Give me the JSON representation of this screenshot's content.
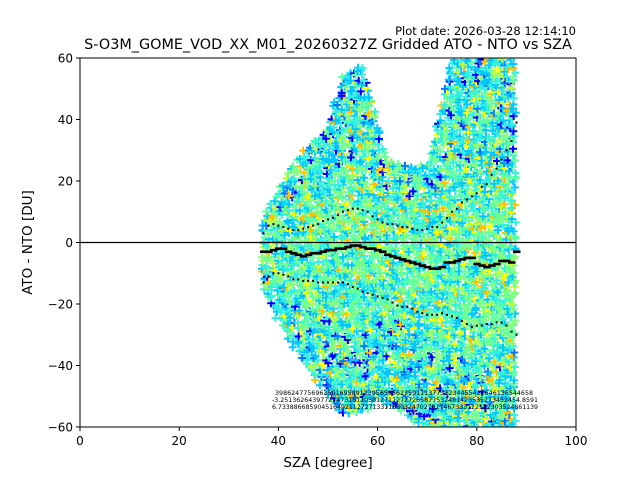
{
  "chart_data": {
    "type": "scatter",
    "title": "S-O3M_GOME_VOD_XX_M01_20260327Z Gridded ATO - NTO vs SZA",
    "plot_date": "Plot date: 2026-03-28 12:14:10",
    "xlabel": "SZA [degree]",
    "ylabel": "ATO - NTO [DU]",
    "xlim": [
      0,
      100
    ],
    "ylim": [
      -60,
      60
    ],
    "xticks": [
      "0",
      "20",
      "40",
      "60",
      "80",
      "100"
    ],
    "yticks": [
      "−60",
      "−40",
      "−20",
      "0",
      "20",
      "40",
      "60"
    ],
    "xtick_values": [
      0,
      20,
      40,
      60,
      80,
      100
    ],
    "ytick_values": [
      -60,
      -40,
      -20,
      0,
      20,
      40,
      60
    ],
    "reference_line_y": 0,
    "colormap": [
      "#0000ff",
      "#0078ff",
      "#00c8ff",
      "#30f0e0",
      "#60ffa0",
      "#80ff80",
      "#c0ff40",
      "#ffff00",
      "#ffc000"
    ],
    "scatter_envelope": {
      "x": [
        37,
        40,
        45,
        50,
        53,
        57,
        60,
        62,
        65,
        70,
        73,
        75,
        80,
        85,
        88
      ],
      "upper": [
        8,
        18,
        30,
        38,
        55,
        58,
        40,
        27,
        25,
        25,
        45,
        60,
        60,
        60,
        60
      ],
      "lower": [
        -15,
        -25,
        -38,
        -50,
        -55,
        -55,
        -50,
        -52,
        -55,
        -60,
        -60,
        -60,
        -60,
        -60,
        -60
      ]
    },
    "mean": {
      "x": [
        37,
        38,
        39,
        40,
        41,
        42,
        43,
        44,
        45,
        46,
        47,
        48,
        49,
        50,
        51,
        52,
        53,
        54,
        55,
        56,
        57,
        58,
        59,
        60,
        61,
        62,
        63,
        64,
        65,
        66,
        67,
        68,
        69,
        70,
        71,
        72,
        73,
        74,
        75,
        76,
        77,
        78,
        79,
        80,
        81,
        82,
        83,
        84,
        85,
        86,
        87,
        88
      ],
      "y": [
        -3,
        -3,
        -2.5,
        -2,
        -2,
        -3,
        -3.5,
        -4,
        -4.5,
        -4,
        -3.5,
        -3.5,
        -3,
        -2.5,
        -2.5,
        -2,
        -2,
        -1.5,
        -1,
        -1,
        -1.5,
        -2,
        -2,
        -2.5,
        -3,
        -4,
        -4.5,
        -5,
        -5.5,
        -6,
        -6.5,
        -7,
        -7.5,
        -8,
        -8.5,
        -8.5,
        -8,
        -6.5,
        -6.5,
        -6,
        -5.5,
        -5,
        -5,
        -7,
        -7.5,
        -8,
        -7.5,
        -7,
        -6,
        -6,
        -6.5,
        -3
      ]
    },
    "std_upper": {
      "x": [
        37,
        38,
        39,
        40,
        41,
        42,
        43,
        44,
        45,
        46,
        47,
        48,
        49,
        50,
        51,
        52,
        53,
        54,
        55,
        56,
        57,
        58,
        59,
        60,
        61,
        62,
        63,
        64,
        65,
        66,
        67,
        68,
        69,
        70,
        71,
        72,
        73,
        74,
        75,
        76,
        77,
        78,
        79,
        80,
        81,
        82,
        83,
        84,
        85,
        86,
        87,
        88
      ],
      "y": [
        3,
        5.5,
        6,
        5.5,
        5,
        4.5,
        4,
        4,
        4.5,
        5,
        5.5,
        6,
        7,
        7.5,
        8,
        9,
        10,
        10.5,
        11,
        11,
        10.5,
        10,
        8.5,
        7.5,
        6.5,
        6,
        6,
        5.5,
        5,
        5,
        4.5,
        4,
        4,
        4.5,
        5,
        5,
        6.5,
        8,
        10,
        11,
        13,
        14,
        15,
        16,
        18,
        19,
        22,
        24,
        27,
        30,
        33,
        39
      ]
    },
    "std_lower": {
      "x": [
        37,
        38,
        39,
        40,
        41,
        42,
        43,
        44,
        45,
        46,
        47,
        48,
        49,
        50,
        51,
        52,
        53,
        54,
        55,
        56,
        57,
        58,
        59,
        60,
        61,
        62,
        63,
        64,
        65,
        66,
        67,
        68,
        69,
        70,
        71,
        72,
        73,
        74,
        75,
        76,
        77,
        78,
        79,
        80,
        81,
        82,
        83,
        84,
        85,
        86,
        87,
        88
      ],
      "y": [
        -13,
        -11,
        -10,
        -10,
        -10.5,
        -11,
        -12,
        -12,
        -12.5,
        -12.5,
        -12.5,
        -13,
        -13,
        -13,
        -13,
        -13,
        -13,
        -13.5,
        -14.5,
        -15,
        -16,
        -16.5,
        -17,
        -17.5,
        -18,
        -18.5,
        -19.5,
        -20.5,
        -21,
        -21,
        -21.5,
        -22.5,
        -23,
        -23.5,
        -23.5,
        -23.5,
        -23,
        -23.5,
        -24,
        -24.5,
        -25.5,
        -26.5,
        -27.5,
        -27,
        -27,
        -26.5,
        -26.5,
        -26,
        -26,
        -27,
        -29,
        -30
      ]
    },
    "annotations": [
      "3986247756963501695891239565956235911137731234455426646136544658",
      "-3.251362643977274731611038127112727265877532481423535273452454.8591",
      "6.733886685904516492112727133116803247027017467333122112303524861139"
    ]
  }
}
